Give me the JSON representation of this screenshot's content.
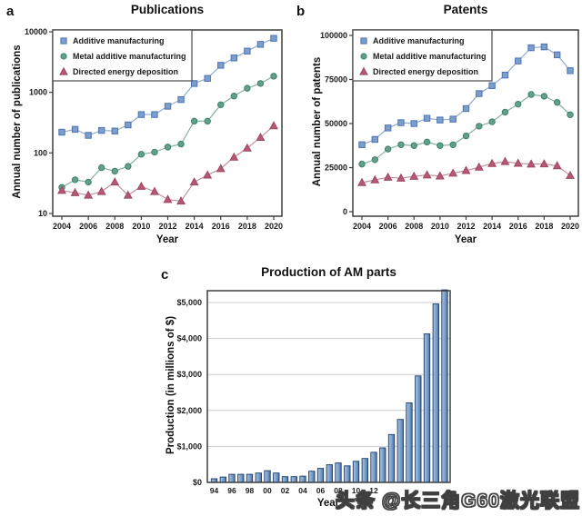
{
  "figure": {
    "panel_letters": [
      "a",
      "b",
      "c"
    ],
    "watermark": "头条 @长三角G60激光联盟"
  },
  "chart_data": [
    {
      "panel": "a",
      "type": "line",
      "title": "Publications",
      "xlabel": "Year",
      "ylabel": "Annual number of publications",
      "yscale": "log",
      "ylim": [
        10,
        10000
      ],
      "yticks": [
        10,
        100,
        1000,
        10000
      ],
      "ytick_labels": [
        "10",
        "100",
        "1000",
        "10000"
      ],
      "x": [
        2004,
        2005,
        2006,
        2007,
        2008,
        2009,
        2010,
        2011,
        2012,
        2013,
        2014,
        2015,
        2016,
        2017,
        2018,
        2019,
        2020
      ],
      "xticks": [
        2004,
        2006,
        2008,
        2010,
        2012,
        2014,
        2016,
        2018,
        2020
      ],
      "xtick_labels": [
        "2004",
        "2006",
        "2008",
        "2010",
        "2012",
        "2014",
        "2016",
        "2018",
        "2020"
      ],
      "legend_position": "top-left",
      "grid": false,
      "series": [
        {
          "name": "Additive manufacturing",
          "marker": "square",
          "marker_fill": "#7b9ecf",
          "marker_stroke": "#4e74b0",
          "line_color": "#8fa9cf",
          "values": [
            220,
            245,
            195,
            235,
            230,
            290,
            430,
            430,
            590,
            760,
            1400,
            1700,
            2800,
            3700,
            4800,
            6200,
            7800
          ]
        },
        {
          "name": "Metal additive manufacturing",
          "marker": "circle",
          "marker_fill": "#62a08c",
          "marker_stroke": "#3c8268",
          "line_color": "#82ae9f",
          "values": [
            27,
            36,
            33,
            57,
            50,
            60,
            95,
            103,
            125,
            140,
            335,
            335,
            625,
            870,
            1170,
            1400,
            1850
          ]
        },
        {
          "name": "Directed energy deposition",
          "marker": "triangle",
          "marker_fill": "#b55a72",
          "marker_stroke": "#9e4560",
          "line_color": "#c08e9c",
          "values": [
            24,
            22,
            20,
            23,
            33,
            20,
            28,
            23,
            17,
            16,
            33,
            43,
            55,
            85,
            120,
            180,
            280
          ]
        }
      ]
    },
    {
      "panel": "b",
      "type": "line",
      "title": "Patents",
      "xlabel": "Year",
      "ylabel": "Annual number of patents",
      "yscale": "linear",
      "ylim": [
        0,
        100000
      ],
      "yticks": [
        0,
        25000,
        50000,
        75000,
        100000
      ],
      "ytick_labels": [
        "0",
        "25000",
        "50000",
        "75000",
        "100000"
      ],
      "x": [
        2004,
        2005,
        2006,
        2007,
        2008,
        2009,
        2010,
        2011,
        2012,
        2013,
        2014,
        2015,
        2016,
        2017,
        2018,
        2019,
        2020
      ],
      "xticks": [
        2004,
        2006,
        2008,
        2010,
        2012,
        2014,
        2016,
        2018,
        2020
      ],
      "xtick_labels": [
        "2004",
        "2006",
        "2008",
        "2010",
        "2012",
        "2014",
        "2016",
        "2018",
        "2020"
      ],
      "legend_position": "top-left",
      "grid": false,
      "series": [
        {
          "name": "Additive manufacturing",
          "marker": "square",
          "marker_fill": "#7b9ecf",
          "marker_stroke": "#4e74b0",
          "line_color": "#8fa9cf",
          "values": [
            38000,
            41000,
            47500,
            50500,
            50000,
            53000,
            52000,
            52500,
            58500,
            67000,
            71500,
            77500,
            85500,
            93000,
            93500,
            89000,
            80000
          ]
        },
        {
          "name": "Metal additive manufacturing",
          "marker": "circle",
          "marker_fill": "#62a08c",
          "marker_stroke": "#3c8268",
          "line_color": "#82ae9f",
          "values": [
            27000,
            29500,
            35500,
            38000,
            37500,
            39500,
            37500,
            38000,
            43000,
            48500,
            51000,
            56500,
            61000,
            66500,
            65500,
            62000,
            55000
          ]
        },
        {
          "name": "Directed energy deposition",
          "marker": "triangle",
          "marker_fill": "#b55a72",
          "marker_stroke": "#9e4560",
          "line_color": "#c08e9c",
          "values": [
            16500,
            18000,
            19500,
            19000,
            20000,
            20800,
            20200,
            21800,
            23300,
            25200,
            27300,
            28400,
            27400,
            27000,
            27100,
            26000,
            20500
          ]
        }
      ]
    },
    {
      "panel": "c",
      "type": "bar",
      "title": "Production of AM parts",
      "xlabel": "Year",
      "ylabel": "Production (in millions of $)",
      "yscale": "linear",
      "ylim": [
        0,
        5300
      ],
      "yticks": [
        0,
        1000,
        2000,
        3000,
        4000,
        5000
      ],
      "ytick_labels": [
        "$0",
        "$1,000",
        "$2,000",
        "$3,000",
        "$4,000",
        "$5,000"
      ],
      "years": [
        1994,
        1995,
        1996,
        1997,
        1998,
        1999,
        2000,
        2001,
        2002,
        2003,
        2004,
        2005,
        2006,
        2007,
        2008,
        2009,
        2010,
        2011,
        2012,
        2013,
        2014,
        2015,
        2016,
        2017,
        2018,
        2019,
        2020
      ],
      "xtick_labels": [
        "94",
        "96",
        "98",
        "00",
        "02",
        "04",
        "06",
        "08",
        "10",
        "12"
      ],
      "grid": true,
      "bar_fill_light": "#aac4e0",
      "bar_fill": "#7b9fcb",
      "bar_fill_dark": "#49749f",
      "bar_stroke": "#1c3c66",
      "values": [
        100,
        150,
        225,
        225,
        225,
        260,
        325,
        260,
        160,
        160,
        175,
        310,
        390,
        490,
        540,
        460,
        585,
        665,
        835,
        960,
        1330,
        1750,
        2210,
        2960,
        4125,
        4960,
        5350
      ]
    }
  ]
}
